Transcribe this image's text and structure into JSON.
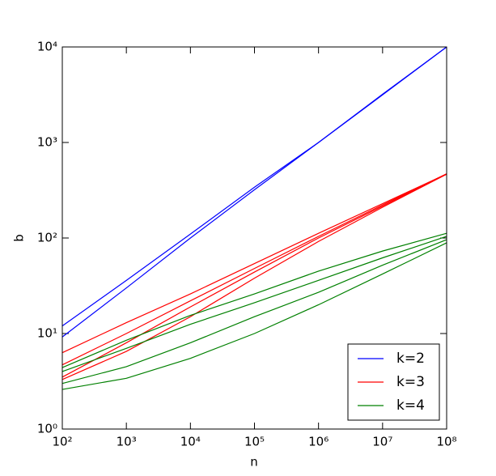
{
  "chart_data": {
    "type": "line",
    "x_label": "n",
    "y_label": "b",
    "log_x": true,
    "log_y": true,
    "xlim": [
      100,
      100000000
    ],
    "ylim": [
      1,
      10000
    ],
    "xticks": [
      {
        "value": 100,
        "label": "10²"
      },
      {
        "value": 1000,
        "label": "10³"
      },
      {
        "value": 10000,
        "label": "10⁴"
      },
      {
        "value": 100000,
        "label": "10⁵"
      },
      {
        "value": 1000000,
        "label": "10⁶"
      },
      {
        "value": 10000000,
        "label": "10⁷"
      },
      {
        "value": 100000000,
        "label": "10⁸"
      }
    ],
    "yticks": [
      {
        "value": 1,
        "label": "10⁰"
      },
      {
        "value": 10,
        "label": "10¹"
      },
      {
        "value": 100,
        "label": "10²"
      },
      {
        "value": 1000,
        "label": "10³"
      },
      {
        "value": 10000,
        "label": "10⁴"
      }
    ],
    "x": [
      100,
      1000,
      10000,
      100000,
      1000000,
      10000000,
      100000000
    ],
    "legend": "lower right",
    "series": [
      {
        "name": "k=2",
        "color": "#0000ff",
        "lines": [
          {
            "values": [
              12,
              36,
              110,
              340,
              1000,
              3200,
              10000
            ]
          },
          {
            "values": [
              9.2,
              30,
              100,
              320,
              1000,
              3150,
              10000
            ]
          }
        ]
      },
      {
        "name": "k=3",
        "color": "#ff0000",
        "lines": [
          {
            "values": [
              6.3,
              13,
              26,
              54,
              112,
              229,
              468
            ]
          },
          {
            "values": [
              4.7,
              10,
              22,
              48,
              104,
              222,
              470
            ]
          },
          {
            "values": [
              3.5,
              8,
              19,
              44,
              100,
              216,
              468
            ]
          },
          {
            "values": [
              3.3,
              6.5,
              15,
              38,
              92,
              210,
              465
            ]
          }
        ]
      },
      {
        "name": "k=4",
        "color": "#008000",
        "lines": [
          {
            "values": [
              4.4,
              8.5,
              15.5,
              26,
              45,
              73,
              112
            ]
          },
          {
            "values": [
              4.0,
              7,
              12.5,
              21,
              36,
              62,
              104
            ]
          },
          {
            "values": [
              3.0,
              4.5,
              8,
              15,
              27,
              52,
              96
            ]
          },
          {
            "values": [
              2.6,
              3.4,
              5.5,
              10,
              20,
              42,
              89
            ]
          }
        ]
      }
    ]
  }
}
